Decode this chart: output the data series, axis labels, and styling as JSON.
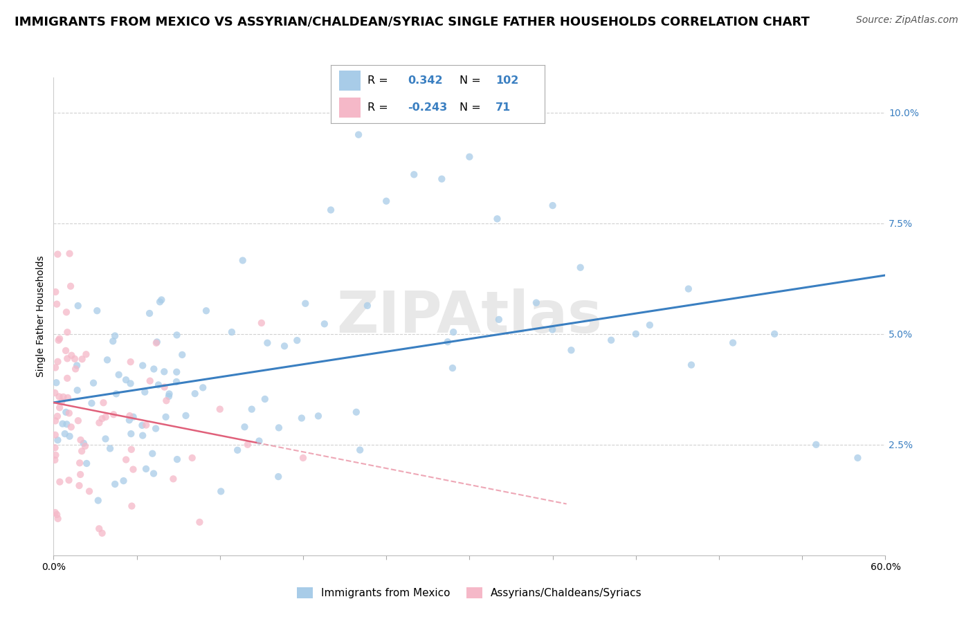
{
  "title": "IMMIGRANTS FROM MEXICO VS ASSYRIAN/CHALDEAN/SYRIAC SINGLE FATHER HOUSEHOLDS CORRELATION CHART",
  "source": "Source: ZipAtlas.com",
  "ylabel": "Single Father Households",
  "legend_label1": "Immigrants from Mexico",
  "legend_label2": "Assyrians/Chaldeans/Syriacs",
  "blue_color": "#a8cce8",
  "pink_color": "#f5b8c8",
  "blue_line_color": "#3a7fc1",
  "pink_line_color": "#e0607a",
  "blue_r": 0.342,
  "blue_n": 102,
  "pink_r": -0.243,
  "pink_n": 71,
  "watermark": "ZIPAtlas",
  "xlim": [
    0.0,
    0.6
  ],
  "ylim": [
    0.0,
    0.108
  ],
  "yticks": [
    0.025,
    0.05,
    0.075,
    0.1
  ],
  "ytick_labels": [
    "2.5%",
    "5.0%",
    "7.5%",
    "10.0%"
  ],
  "title_fontsize": 13,
  "source_fontsize": 10,
  "axis_label_fontsize": 10,
  "tick_fontsize": 10,
  "legend_r1_r": "0.342",
  "legend_r1_n": "102",
  "legend_r2_r": "-0.243",
  "legend_r2_n": "71"
}
